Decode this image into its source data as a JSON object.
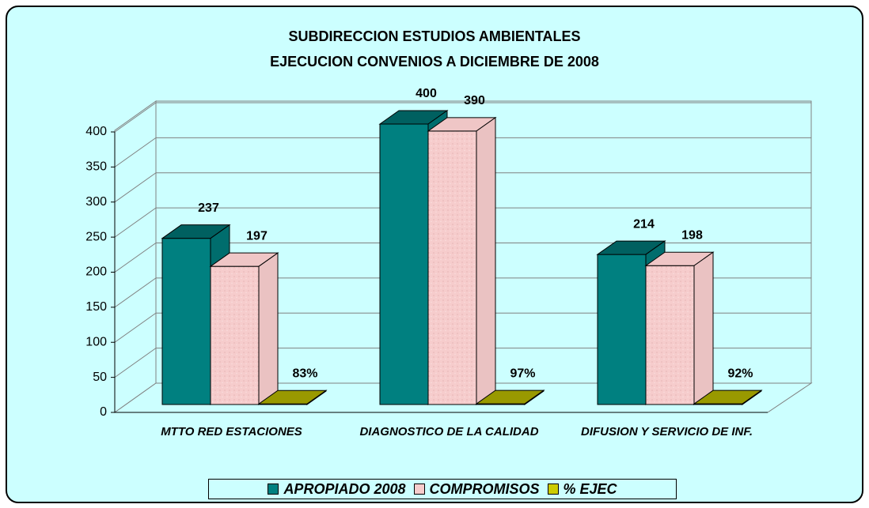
{
  "chart_data": {
    "type": "bar3d",
    "title": [
      "SUBDIRECCION ESTUDIOS AMBIENTALES",
      "EJECUCION CONVENIOS A DICIEMBRE DE 2008"
    ],
    "categories": [
      "MTTO RED ESTACIONES",
      "DIAGNOSTICO DE LA CALIDAD",
      "DIFUSION Y SERVICIO DE INF."
    ],
    "series": [
      {
        "name": "APROPIADO 2008",
        "color": "#008080",
        "values": [
          237,
          400,
          214
        ]
      },
      {
        "name": "COMPROMISOS",
        "color": "#f6cccc",
        "values": [
          197,
          390,
          198
        ]
      },
      {
        "name": "% EJEC",
        "color": "#cccc00",
        "values": [
          0.83,
          0.97,
          0.92
        ],
        "value_labels": [
          "83%",
          "97%",
          "92%"
        ]
      }
    ],
    "ylim": [
      0,
      400
    ],
    "yticks": [
      0,
      50,
      100,
      150,
      200,
      250,
      300,
      350,
      400
    ],
    "grid": true,
    "legend": "bottom"
  }
}
